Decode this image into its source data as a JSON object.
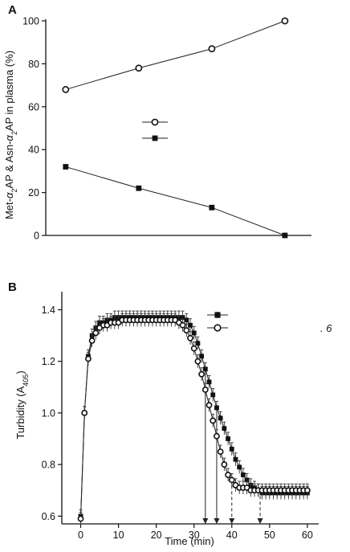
{
  "figure": {
    "stray_text": ". 6"
  },
  "chart_data": [
    {
      "panel_label": "A",
      "type": "line",
      "xlabel": "",
      "ylabel": "Met-α2AP & Asn-α2AP in plasma (%)",
      "ylim": [
        0,
        100
      ],
      "yticks": [
        0,
        20,
        40,
        60,
        80,
        100
      ],
      "xlim": [
        0,
        4
      ],
      "xticks": [],
      "grid": false,
      "legend_position": "center",
      "legend_entries": [
        {
          "marker": "open-circle",
          "label": ""
        },
        {
          "marker": "filled-square",
          "label": ""
        }
      ],
      "series": [
        {
          "marker": "open-circle",
          "x": [
            0.3,
            1.4,
            2.5,
            3.6
          ],
          "y": [
            68,
            78,
            87,
            100
          ]
        },
        {
          "marker": "filled-square",
          "x": [
            0.3,
            1.4,
            2.5,
            3.6
          ],
          "y": [
            32,
            22,
            13,
            0
          ]
        }
      ]
    },
    {
      "panel_label": "B",
      "type": "line",
      "xlabel": "Time (min)",
      "ylabel": "Turbidity (A405)",
      "xlim": [
        -5,
        63
      ],
      "xticks": [
        0,
        10,
        20,
        30,
        40,
        50,
        60
      ],
      "ylim": [
        0.57,
        1.47
      ],
      "yticks": [
        0.6,
        0.8,
        1.0,
        1.2,
        1.4
      ],
      "grid": false,
      "legend_position": "top-right",
      "legend_entries": [
        {
          "marker": "filled-square",
          "label": ""
        },
        {
          "marker": "open-circle",
          "label": ""
        }
      ],
      "error_bar": 0.025,
      "series": [
        {
          "marker": "filled-square",
          "x": [
            0,
            1,
            2,
            3,
            4,
            5,
            6,
            7,
            8,
            9,
            10,
            11,
            12,
            13,
            14,
            15,
            16,
            17,
            18,
            19,
            20,
            21,
            22,
            23,
            24,
            25,
            26,
            27,
            28,
            29,
            30,
            31,
            32,
            33,
            34,
            35,
            36,
            37,
            38,
            39,
            40,
            41,
            42,
            43,
            44,
            45,
            46,
            47,
            48,
            49,
            50,
            51,
            52,
            53,
            54,
            55,
            56,
            57,
            58,
            59,
            60
          ],
          "y": [
            0.6,
            1.0,
            1.22,
            1.3,
            1.33,
            1.35,
            1.35,
            1.36,
            1.36,
            1.37,
            1.37,
            1.37,
            1.37,
            1.37,
            1.37,
            1.37,
            1.37,
            1.37,
            1.37,
            1.37,
            1.37,
            1.37,
            1.37,
            1.37,
            1.37,
            1.37,
            1.37,
            1.37,
            1.36,
            1.34,
            1.31,
            1.27,
            1.22,
            1.17,
            1.12,
            1.07,
            1.02,
            0.98,
            0.94,
            0.9,
            0.86,
            0.82,
            0.79,
            0.76,
            0.74,
            0.72,
            0.71,
            0.7,
            0.69,
            0.69,
            0.69,
            0.69,
            0.69,
            0.69,
            0.69,
            0.69,
            0.69,
            0.69,
            0.69,
            0.69,
            0.69
          ]
        },
        {
          "marker": "open-circle",
          "x": [
            0,
            1,
            2,
            3,
            4,
            5,
            6,
            7,
            8,
            9,
            10,
            11,
            12,
            13,
            14,
            15,
            16,
            17,
            18,
            19,
            20,
            21,
            22,
            23,
            24,
            25,
            26,
            27,
            28,
            29,
            30,
            31,
            32,
            33,
            34,
            35,
            36,
            37,
            38,
            39,
            40,
            41,
            42,
            43,
            44,
            45,
            46,
            47,
            48,
            49,
            50,
            51,
            52,
            53,
            54,
            55,
            56,
            57,
            58,
            59,
            60
          ],
          "y": [
            0.59,
            1.0,
            1.21,
            1.28,
            1.31,
            1.33,
            1.34,
            1.34,
            1.35,
            1.35,
            1.35,
            1.36,
            1.36,
            1.36,
            1.36,
            1.36,
            1.36,
            1.36,
            1.36,
            1.36,
            1.36,
            1.36,
            1.36,
            1.36,
            1.36,
            1.36,
            1.35,
            1.34,
            1.32,
            1.29,
            1.25,
            1.2,
            1.15,
            1.09,
            1.03,
            0.97,
            0.91,
            0.85,
            0.8,
            0.76,
            0.74,
            0.72,
            0.71,
            0.71,
            0.71,
            0.7,
            0.7,
            0.7,
            0.7,
            0.7,
            0.7,
            0.7,
            0.7,
            0.7,
            0.7,
            0.7,
            0.7,
            0.7,
            0.7,
            0.7,
            0.7
          ]
        }
      ],
      "marker_lines": [
        {
          "x": 33,
          "style": "solid"
        },
        {
          "x": 36,
          "style": "solid"
        },
        {
          "x": 40,
          "style": "dashed"
        },
        {
          "x": 47.5,
          "style": "dashed"
        }
      ]
    }
  ]
}
